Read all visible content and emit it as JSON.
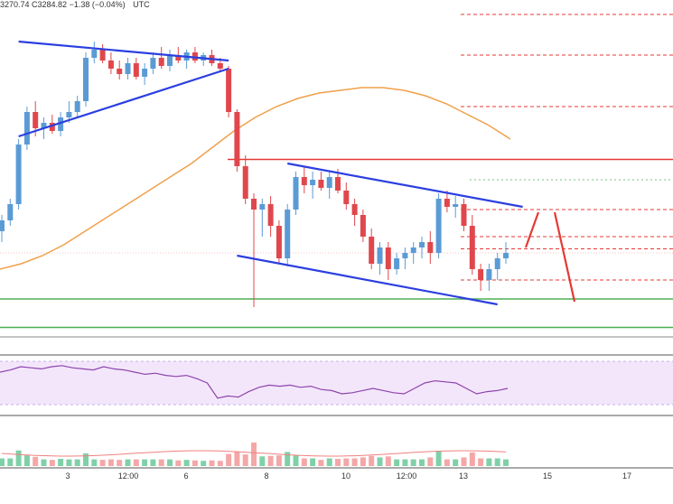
{
  "header": {
    "ohlc_text": "3270.74  C3284.82  −1.38 (−0.04%)",
    "timezone": "UTC"
  },
  "colors": {
    "up": "#5b9bd5",
    "down": "#e0474c",
    "trend": "#2b3fe0",
    "ma": "#f0a04b",
    "support": "#4caf50",
    "resistance": "#e53935",
    "rsi_line": "#8e44ad",
    "rsi_band": "#f3e6fb",
    "vol_up": "#7fd0a8",
    "vol_down": "#f4a7a7",
    "forecast": "#e53935"
  },
  "chart_data": {
    "type": "candlestick",
    "title": "",
    "x_ticks": [
      "3",
      "12:00",
      "6",
      "8",
      "10",
      "12:00",
      "13",
      "15",
      "17"
    ],
    "y_range_normalized": [
      0,
      1
    ],
    "candles": [
      {
        "o": 0.18,
        "h": 0.24,
        "l": 0.14,
        "c": 0.22
      },
      {
        "o": 0.22,
        "h": 0.3,
        "l": 0.2,
        "c": 0.28
      },
      {
        "o": 0.28,
        "h": 0.52,
        "l": 0.26,
        "c": 0.5
      },
      {
        "o": 0.5,
        "h": 0.64,
        "l": 0.48,
        "c": 0.62
      },
      {
        "o": 0.62,
        "h": 0.66,
        "l": 0.53,
        "c": 0.56
      },
      {
        "o": 0.56,
        "h": 0.6,
        "l": 0.52,
        "c": 0.58
      },
      {
        "o": 0.58,
        "h": 0.61,
        "l": 0.54,
        "c": 0.55
      },
      {
        "o": 0.55,
        "h": 0.62,
        "l": 0.53,
        "c": 0.6
      },
      {
        "o": 0.6,
        "h": 0.66,
        "l": 0.58,
        "c": 0.62
      },
      {
        "o": 0.62,
        "h": 0.68,
        "l": 0.6,
        "c": 0.66
      },
      {
        "o": 0.66,
        "h": 0.84,
        "l": 0.64,
        "c": 0.82
      },
      {
        "o": 0.82,
        "h": 0.88,
        "l": 0.8,
        "c": 0.85
      },
      {
        "o": 0.85,
        "h": 0.87,
        "l": 0.8,
        "c": 0.81
      },
      {
        "o": 0.81,
        "h": 0.84,
        "l": 0.76,
        "c": 0.78
      },
      {
        "o": 0.78,
        "h": 0.81,
        "l": 0.74,
        "c": 0.76
      },
      {
        "o": 0.76,
        "h": 0.82,
        "l": 0.74,
        "c": 0.8
      },
      {
        "o": 0.8,
        "h": 0.82,
        "l": 0.74,
        "c": 0.75
      },
      {
        "o": 0.75,
        "h": 0.8,
        "l": 0.72,
        "c": 0.78
      },
      {
        "o": 0.78,
        "h": 0.84,
        "l": 0.76,
        "c": 0.82
      },
      {
        "o": 0.82,
        "h": 0.86,
        "l": 0.78,
        "c": 0.79
      },
      {
        "o": 0.79,
        "h": 0.85,
        "l": 0.77,
        "c": 0.83
      },
      {
        "o": 0.83,
        "h": 0.86,
        "l": 0.8,
        "c": 0.81
      },
      {
        "o": 0.81,
        "h": 0.85,
        "l": 0.78,
        "c": 0.84
      },
      {
        "o": 0.84,
        "h": 0.86,
        "l": 0.8,
        "c": 0.81
      },
      {
        "o": 0.81,
        "h": 0.84,
        "l": 0.79,
        "c": 0.83
      },
      {
        "o": 0.83,
        "h": 0.85,
        "l": 0.79,
        "c": 0.8
      },
      {
        "o": 0.8,
        "h": 0.82,
        "l": 0.77,
        "c": 0.78
      },
      {
        "o": 0.78,
        "h": 0.79,
        "l": 0.6,
        "c": 0.62
      },
      {
        "o": 0.62,
        "h": 0.63,
        "l": 0.4,
        "c": 0.42
      },
      {
        "o": 0.42,
        "h": 0.46,
        "l": 0.28,
        "c": 0.3
      },
      {
        "o": 0.3,
        "h": 0.32,
        "l": -0.1,
        "c": 0.26
      },
      {
        "o": 0.26,
        "h": 0.3,
        "l": 0.16,
        "c": 0.28
      },
      {
        "o": 0.28,
        "h": 0.31,
        "l": 0.16,
        "c": 0.2
      },
      {
        "o": 0.2,
        "h": 0.22,
        "l": 0.06,
        "c": 0.08
      },
      {
        "o": 0.08,
        "h": 0.28,
        "l": 0.05,
        "c": 0.26
      },
      {
        "o": 0.26,
        "h": 0.4,
        "l": 0.24,
        "c": 0.38
      },
      {
        "o": 0.38,
        "h": 0.42,
        "l": 0.32,
        "c": 0.35
      },
      {
        "o": 0.35,
        "h": 0.4,
        "l": 0.3,
        "c": 0.37
      },
      {
        "o": 0.37,
        "h": 0.4,
        "l": 0.33,
        "c": 0.34
      },
      {
        "o": 0.34,
        "h": 0.4,
        "l": 0.3,
        "c": 0.38
      },
      {
        "o": 0.38,
        "h": 0.41,
        "l": 0.32,
        "c": 0.33
      },
      {
        "o": 0.33,
        "h": 0.36,
        "l": 0.26,
        "c": 0.28
      },
      {
        "o": 0.28,
        "h": 0.3,
        "l": 0.2,
        "c": 0.24
      },
      {
        "o": 0.24,
        "h": 0.26,
        "l": 0.14,
        "c": 0.16
      },
      {
        "o": 0.16,
        "h": 0.19,
        "l": 0.04,
        "c": 0.06
      },
      {
        "o": 0.06,
        "h": 0.14,
        "l": 0.02,
        "c": 0.12
      },
      {
        "o": 0.12,
        "h": 0.14,
        "l": 0.0,
        "c": 0.04
      },
      {
        "o": 0.04,
        "h": 0.1,
        "l": 0.02,
        "c": 0.08
      },
      {
        "o": 0.08,
        "h": 0.12,
        "l": 0.04,
        "c": 0.1
      },
      {
        "o": 0.1,
        "h": 0.14,
        "l": 0.06,
        "c": 0.12
      },
      {
        "o": 0.12,
        "h": 0.16,
        "l": 0.08,
        "c": 0.14
      },
      {
        "o": 0.14,
        "h": 0.18,
        "l": 0.06,
        "c": 0.1
      },
      {
        "o": 0.1,
        "h": 0.32,
        "l": 0.08,
        "c": 0.3
      },
      {
        "o": 0.3,
        "h": 0.33,
        "l": 0.25,
        "c": 0.27
      },
      {
        "o": 0.27,
        "h": 0.31,
        "l": 0.23,
        "c": 0.28
      },
      {
        "o": 0.28,
        "h": 0.3,
        "l": 0.18,
        "c": 0.2
      },
      {
        "o": 0.2,
        "h": 0.24,
        "l": 0.02,
        "c": 0.04
      },
      {
        "o": 0.04,
        "h": 0.06,
        "l": -0.04,
        "c": 0.0
      },
      {
        "o": 0.0,
        "h": 0.06,
        "l": -0.04,
        "c": 0.04
      },
      {
        "o": 0.04,
        "h": 0.1,
        "l": 0.0,
        "c": 0.08
      },
      {
        "o": 0.08,
        "h": 0.14,
        "l": 0.06,
        "c": 0.1
      }
    ],
    "moving_average": [
      0.04,
      0.06,
      0.09,
      0.13,
      0.18,
      0.23,
      0.28,
      0.33,
      0.38,
      0.43,
      0.49,
      0.55,
      0.6,
      0.64,
      0.67,
      0.69,
      0.7,
      0.71,
      0.71,
      0.7,
      0.68,
      0.65,
      0.61,
      0.57,
      0.52
    ],
    "trend_lines": [
      {
        "name": "upper-triangle",
        "from": [
          2,
          0.88
        ],
        "to": [
          27,
          0.81
        ]
      },
      {
        "name": "lower-triangle",
        "from": [
          2,
          0.53
        ],
        "to": [
          27,
          0.78
        ]
      },
      {
        "name": "channel-top",
        "from": [
          34,
          0.43
        ],
        "to": [
          62,
          0.27
        ]
      },
      {
        "name": "channel-bottom",
        "from": [
          28,
          0.09
        ],
        "to": [
          59,
          -0.09
        ]
      }
    ],
    "horizontal_levels": {
      "resistance_solid": [
        0.445
      ],
      "resistance_dashed": [
        0.98,
        0.83,
        0.64,
        0.26,
        0.16,
        0.0,
        0.115
      ],
      "support_solid": [
        -0.07,
        -0.175
      ]
    },
    "rsi": [
      50,
      52,
      55,
      54,
      53,
      55,
      56,
      54,
      53,
      52,
      55,
      53,
      52,
      50,
      48,
      49,
      47,
      46,
      47,
      44,
      40,
      26,
      28,
      27,
      32,
      36,
      38,
      37,
      38,
      36,
      37,
      34,
      33,
      30,
      31,
      33,
      35,
      33,
      31,
      30,
      35,
      40,
      42,
      41,
      40,
      35,
      30,
      32,
      33,
      35
    ]
  }
}
